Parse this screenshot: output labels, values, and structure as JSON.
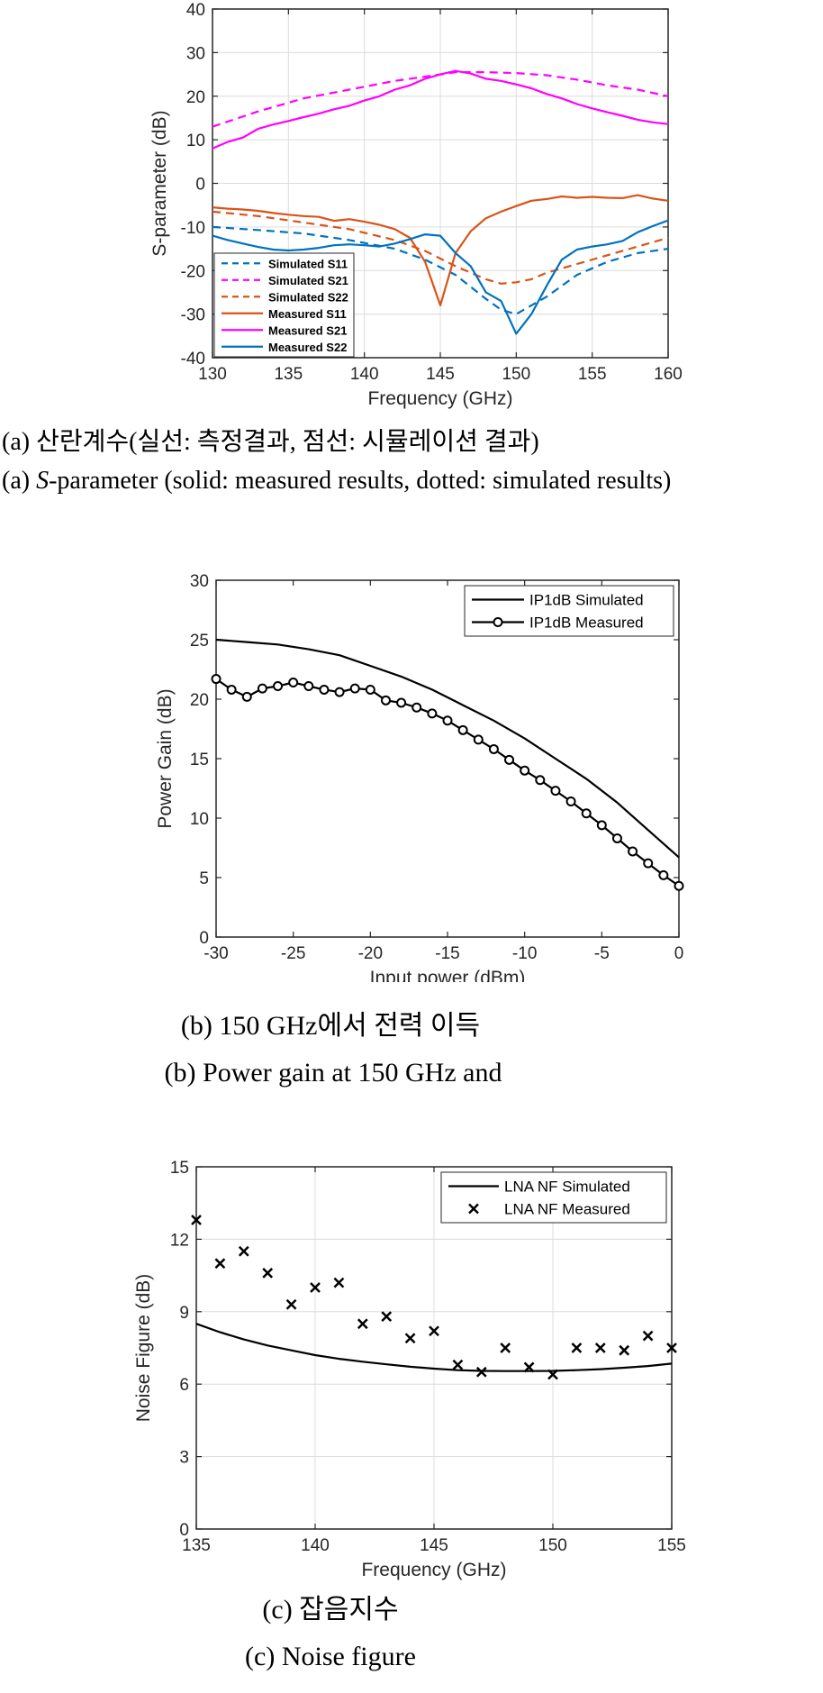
{
  "chart_data": [
    {
      "type": "line",
      "xlabel": "Frequency (GHz)",
      "ylabel": "S-parameter (dB)",
      "xlim": [
        130,
        160
      ],
      "ylim": [
        -40,
        40
      ],
      "xticks": [
        130,
        135,
        140,
        145,
        150,
        155,
        160
      ],
      "yticks": [
        -40,
        -30,
        -20,
        -10,
        0,
        10,
        20,
        30,
        40
      ],
      "grid": true,
      "legend_placement": "bottom-left",
      "series": [
        {
          "name": "Simulated S11",
          "style": "dashed",
          "color": "#0072BD",
          "x": [
            130,
            133,
            136,
            139,
            142,
            144,
            146,
            148,
            149,
            150,
            151,
            152,
            154,
            156,
            158,
            160
          ],
          "y": [
            -10,
            -10.7,
            -11.5,
            -13,
            -15,
            -17.5,
            -21,
            -26.5,
            -29,
            -30,
            -28,
            -26,
            -21,
            -18,
            -16,
            -15
          ]
        },
        {
          "name": "Simulated S21",
          "style": "dashed",
          "color": "#FF00FF",
          "x": [
            130,
            133,
            136,
            139,
            142,
            145,
            146,
            148,
            150,
            152,
            154,
            156,
            158,
            160
          ],
          "y": [
            13,
            16.5,
            19.5,
            21.5,
            23.5,
            25,
            25.5,
            25.5,
            25.3,
            24.8,
            23.8,
            22.5,
            21.5,
            20
          ]
        },
        {
          "name": "Simulated S22",
          "style": "dashed",
          "color": "#D95319",
          "x": [
            130,
            133,
            136,
            139,
            142,
            144,
            146,
            148,
            149,
            150,
            151,
            152,
            154,
            156,
            158,
            160
          ],
          "y": [
            -6.5,
            -7.5,
            -9,
            -10.5,
            -13,
            -15.5,
            -19,
            -22,
            -23,
            -22.7,
            -22,
            -20.5,
            -18.5,
            -16.5,
            -14.5,
            -12.5
          ]
        },
        {
          "name": "Measured S11",
          "style": "solid",
          "color": "#D95319",
          "x": [
            130,
            131,
            132,
            133,
            134,
            135,
            136,
            137,
            138,
            139,
            140,
            141,
            142,
            143,
            144,
            145,
            146,
            147,
            148,
            149,
            150,
            151,
            152,
            153,
            154,
            155,
            156,
            157,
            158,
            159,
            160
          ],
          "y": [
            -5.5,
            -5.8,
            -6,
            -6.3,
            -6.8,
            -7.2,
            -7.5,
            -7.7,
            -8.6,
            -8.2,
            -8.8,
            -9.5,
            -10.5,
            -12.5,
            -18,
            -28,
            -16,
            -11,
            -8,
            -6.5,
            -5.2,
            -4,
            -3.6,
            -3,
            -3.3,
            -3.1,
            -3.3,
            -3.4,
            -2.7,
            -3.5,
            -4
          ]
        },
        {
          "name": "Measured S21",
          "style": "solid",
          "color": "#FF00FF",
          "x": [
            130,
            131,
            132,
            133,
            134,
            135,
            136,
            137,
            138,
            139,
            140,
            141,
            142,
            143,
            144,
            145,
            146,
            147,
            148,
            149,
            150,
            151,
            152,
            153,
            154,
            155,
            156,
            157,
            158,
            159,
            160
          ],
          "y": [
            8,
            9.5,
            10.5,
            12.5,
            13.5,
            14.3,
            15.2,
            16,
            17,
            17.8,
            19,
            20,
            21.5,
            22.5,
            24,
            25,
            25.8,
            25.2,
            24,
            23.5,
            22.7,
            21.8,
            20.5,
            19.5,
            18.2,
            17.2,
            16.3,
            15.5,
            14.6,
            14,
            13.6
          ]
        },
        {
          "name": "Measured S22",
          "style": "solid",
          "color": "#0072BD",
          "x": [
            130,
            131,
            132,
            133,
            134,
            135,
            136,
            137,
            138,
            139,
            140,
            141,
            142,
            143,
            144,
            145,
            146,
            147,
            148,
            149,
            150,
            151,
            152,
            153,
            154,
            155,
            156,
            157,
            158,
            159,
            160
          ],
          "y": [
            -12,
            -13,
            -13.8,
            -14.6,
            -15.2,
            -15.4,
            -15.2,
            -14.8,
            -14.2,
            -14,
            -14.2,
            -14.5,
            -13.8,
            -12.8,
            -11.7,
            -12,
            -16,
            -19,
            -25,
            -27,
            -34.5,
            -30,
            -23.5,
            -17.5,
            -15.2,
            -14.5,
            -14,
            -13.2,
            -11.2,
            -9.8,
            -8.5
          ]
        }
      ]
    },
    {
      "type": "line",
      "xlabel": "Input power (dBm)",
      "ylabel": "Power Gain (dB)",
      "xlim": [
        -30,
        0
      ],
      "ylim": [
        0,
        30
      ],
      "xticks": [
        -30,
        -25,
        -20,
        -15,
        -10,
        -5,
        0
      ],
      "yticks": [
        0,
        5,
        10,
        15,
        20,
        25,
        30
      ],
      "grid": false,
      "legend_placement": "top-right",
      "series": [
        {
          "name": "IP1dB Simulated",
          "style": "solid",
          "color": "#000000",
          "x": [
            -30,
            -28,
            -26,
            -24,
            -22,
            -20,
            -18,
            -16,
            -14,
            -12,
            -10,
            -8,
            -6,
            -4,
            -2,
            0
          ],
          "y": [
            25,
            24.8,
            24.6,
            24.2,
            23.7,
            22.8,
            21.9,
            20.8,
            19.5,
            18.2,
            16.7,
            15,
            13.3,
            11.3,
            9,
            6.7
          ]
        },
        {
          "name": "IP1dB Measured",
          "style": "solid-circle",
          "color": "#000000",
          "x": [
            -30,
            -29,
            -28,
            -27,
            -26,
            -25,
            -24,
            -23,
            -22,
            -21,
            -20,
            -19,
            -18,
            -17,
            -16,
            -15,
            -14,
            -13,
            -12,
            -11,
            -10,
            -9,
            -8,
            -7,
            -6,
            -5,
            -4,
            -3,
            -2,
            -1,
            0
          ],
          "y": [
            21.7,
            20.8,
            20.2,
            20.9,
            21.1,
            21.4,
            21.1,
            20.8,
            20.6,
            20.9,
            20.8,
            19.9,
            19.7,
            19.3,
            18.8,
            18.2,
            17.4,
            16.6,
            15.8,
            14.9,
            14,
            13.2,
            12.3,
            11.4,
            10.4,
            9.4,
            8.3,
            7.2,
            6.2,
            5.2,
            4.3
          ]
        }
      ]
    },
    {
      "type": "line",
      "xlabel": "Frequency (GHz)",
      "ylabel": "Noise Figure (dB)",
      "xlim": [
        135,
        155
      ],
      "ylim": [
        0,
        15
      ],
      "xticks": [
        135,
        140,
        145,
        150,
        155
      ],
      "yticks": [
        0,
        3,
        6,
        9,
        12,
        15
      ],
      "grid": true,
      "legend_placement": "top-right",
      "series": [
        {
          "name": "LNA NF Simulated",
          "style": "solid",
          "color": "#000000",
          "x": [
            135,
            136,
            137,
            138,
            139,
            140,
            141,
            142,
            143,
            144,
            145,
            146,
            147,
            148,
            149,
            150,
            151,
            152,
            153,
            154,
            155
          ],
          "y": [
            8.5,
            8.15,
            7.85,
            7.6,
            7.4,
            7.2,
            7.05,
            6.93,
            6.82,
            6.72,
            6.64,
            6.58,
            6.55,
            6.54,
            6.54,
            6.55,
            6.58,
            6.62,
            6.68,
            6.75,
            6.85
          ]
        },
        {
          "name": "LNA NF Measured",
          "style": "marker-x",
          "color": "#000000",
          "x": [
            135,
            136,
            137,
            138,
            139,
            140,
            141,
            142,
            143,
            144,
            145,
            146,
            147,
            148,
            149,
            150,
            151,
            152,
            153,
            154,
            155
          ],
          "y": [
            12.8,
            11,
            11.5,
            10.6,
            9.3,
            10,
            10.2,
            8.5,
            8.8,
            7.9,
            8.2,
            6.8,
            6.5,
            7.5,
            6.7,
            6.4,
            7.5,
            7.5,
            7.4,
            8,
            7.5
          ]
        }
      ]
    }
  ],
  "captions": {
    "a_korean": "(a) 산란계수(실선: 측정결과, 점선: 시뮬레이션 결과)",
    "a_english_prefix": "(a) ",
    "a_english_italic": "S",
    "a_english_rest": "-parameter (solid: measured results, dotted: simulated results)",
    "b_korean": "(b) 150 GHz에서 전력 이득",
    "b_english": "(b) Power gain at 150 GHz and",
    "c_korean": "(c) 잡음지수",
    "c_english": "(c) Noise figure"
  }
}
